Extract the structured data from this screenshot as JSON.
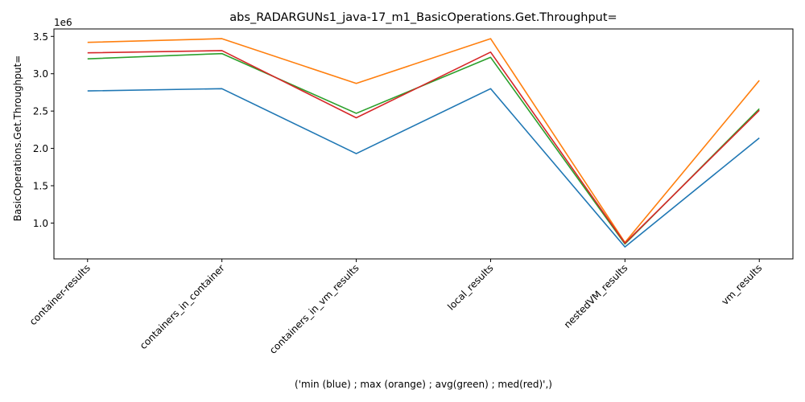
{
  "chart_data": {
    "type": "line",
    "title": "abs_RADARGUNs1_java-17_m1_BasicOperations.Get.Throughput=",
    "xlabel": "('min (blue) ; max (orange) ; avg(green) ; med(red)',)",
    "ylabel": "BasicOperations.Get.Throughput=",
    "y_offset_label": "1e6",
    "categories": [
      "container-results",
      "containers_in_container",
      "containers_in_vm_results",
      "local_results",
      "nestedVM_results",
      "vm_results"
    ],
    "ylim": [
      0.52,
      3.6
    ],
    "yticks": [
      1.0,
      1.5,
      2.0,
      2.5,
      3.0,
      3.5
    ],
    "ytick_labels": [
      "1.0",
      "1.5",
      "2.0",
      "2.5",
      "3.0",
      "3.5"
    ],
    "grid": false,
    "legend": "none",
    "series": [
      {
        "color": "#1f77b4",
        "values": [
          2.77,
          2.8,
          1.93,
          2.8,
          0.68,
          2.14
        ]
      },
      {
        "color": "#ff7f0e",
        "values": [
          3.42,
          3.47,
          2.87,
          3.47,
          0.74,
          2.91
        ]
      },
      {
        "color": "#2ca02c",
        "values": [
          3.2,
          3.27,
          2.47,
          3.22,
          0.72,
          2.53
        ]
      },
      {
        "color": "#d62728",
        "values": [
          3.28,
          3.31,
          2.41,
          3.29,
          0.73,
          2.51
        ]
      }
    ]
  }
}
